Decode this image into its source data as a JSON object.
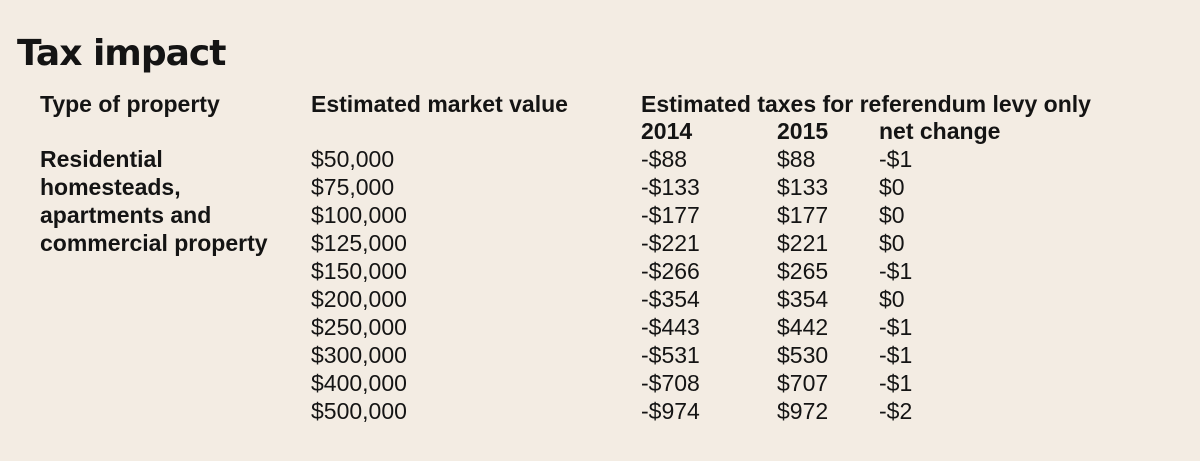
{
  "title": "Tax impact",
  "headers": {
    "type_of_property": "Type of property",
    "market_value": "Estimated market value",
    "taxes": "Estimated taxes for referendum levy only",
    "year_2014": "2014",
    "year_2015": "2015",
    "net_change": "net change"
  },
  "property_type_lines": [
    "Residential",
    "homesteads,",
    "apartments and",
    "commercial property"
  ],
  "rows": [
    {
      "value": "$50,000",
      "tax_2014": "-$88",
      "tax_2015": "$88",
      "net": "-$1"
    },
    {
      "value": "$75,000",
      "tax_2014": "-$133",
      "tax_2015": "$133",
      "net": "$0"
    },
    {
      "value": "$100,000",
      "tax_2014": "-$177",
      "tax_2015": "$177",
      "net": "$0"
    },
    {
      "value": "$125,000",
      "tax_2014": "-$221",
      "tax_2015": "$221",
      "net": "$0"
    },
    {
      "value": "$150,000",
      "tax_2014": "-$266",
      "tax_2015": "$265",
      "net": "-$1"
    },
    {
      "value": "$200,000",
      "tax_2014": "-$354",
      "tax_2015": "$354",
      "net": "$0"
    },
    {
      "value": "$250,000",
      "tax_2014": "-$443",
      "tax_2015": "$442",
      "net": "-$1"
    },
    {
      "value": "$300,000",
      "tax_2014": "-$531",
      "tax_2015": "$530",
      "net": "-$1"
    },
    {
      "value": "$400,000",
      "tax_2014": "-$708",
      "tax_2015": "$707",
      "net": "-$1"
    },
    {
      "value": "$500,000",
      "tax_2014": "-$974",
      "tax_2015": "$972",
      "net": "-$2"
    }
  ]
}
